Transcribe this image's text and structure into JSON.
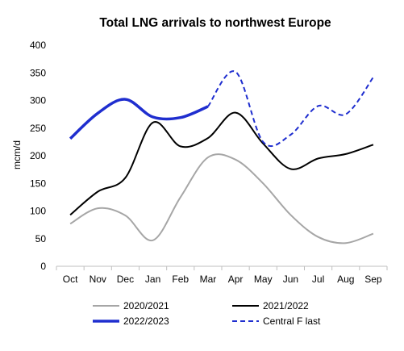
{
  "chart_data": {
    "type": "line",
    "title": "Total LNG arrivals to northwest Europe",
    "xlabel": "",
    "ylabel": "mcm/d",
    "categories": [
      "Oct",
      "Nov",
      "Dec",
      "Jan",
      "Feb",
      "Mar",
      "Apr",
      "May",
      "Jun",
      "Jul",
      "Aug",
      "Sep"
    ],
    "yticks": [
      "0",
      "50",
      "100",
      "150",
      "200",
      "250",
      "300",
      "350",
      "400"
    ],
    "ylim": [
      0,
      400
    ],
    "grid": false,
    "legend_position": "bottom",
    "series": [
      {
        "name": "2020/2021",
        "color": "#a6a6a6",
        "dash": "solid",
        "width": "normal",
        "values": [
          77,
          105,
          92,
          47,
          125,
          197,
          193,
          150,
          93,
          53,
          42,
          59
        ]
      },
      {
        "name": "2021/2022",
        "color": "#000000",
        "dash": "solid",
        "width": "normal",
        "values": [
          93,
          135,
          160,
          260,
          217,
          232,
          278,
          222,
          176,
          195,
          203,
          220
        ]
      },
      {
        "name": "2022/2023",
        "color": "#1f2ecf",
        "dash": "solid",
        "width": "bold",
        "values": [
          231,
          277,
          302,
          270,
          269,
          289,
          null,
          null,
          null,
          null,
          null,
          null
        ]
      },
      {
        "name": "Central F last",
        "color": "#1f2ecf",
        "dash": "dashed",
        "width": "normal",
        "values": [
          null,
          null,
          null,
          null,
          null,
          289,
          352,
          225,
          238,
          290,
          275,
          342
        ]
      }
    ]
  }
}
